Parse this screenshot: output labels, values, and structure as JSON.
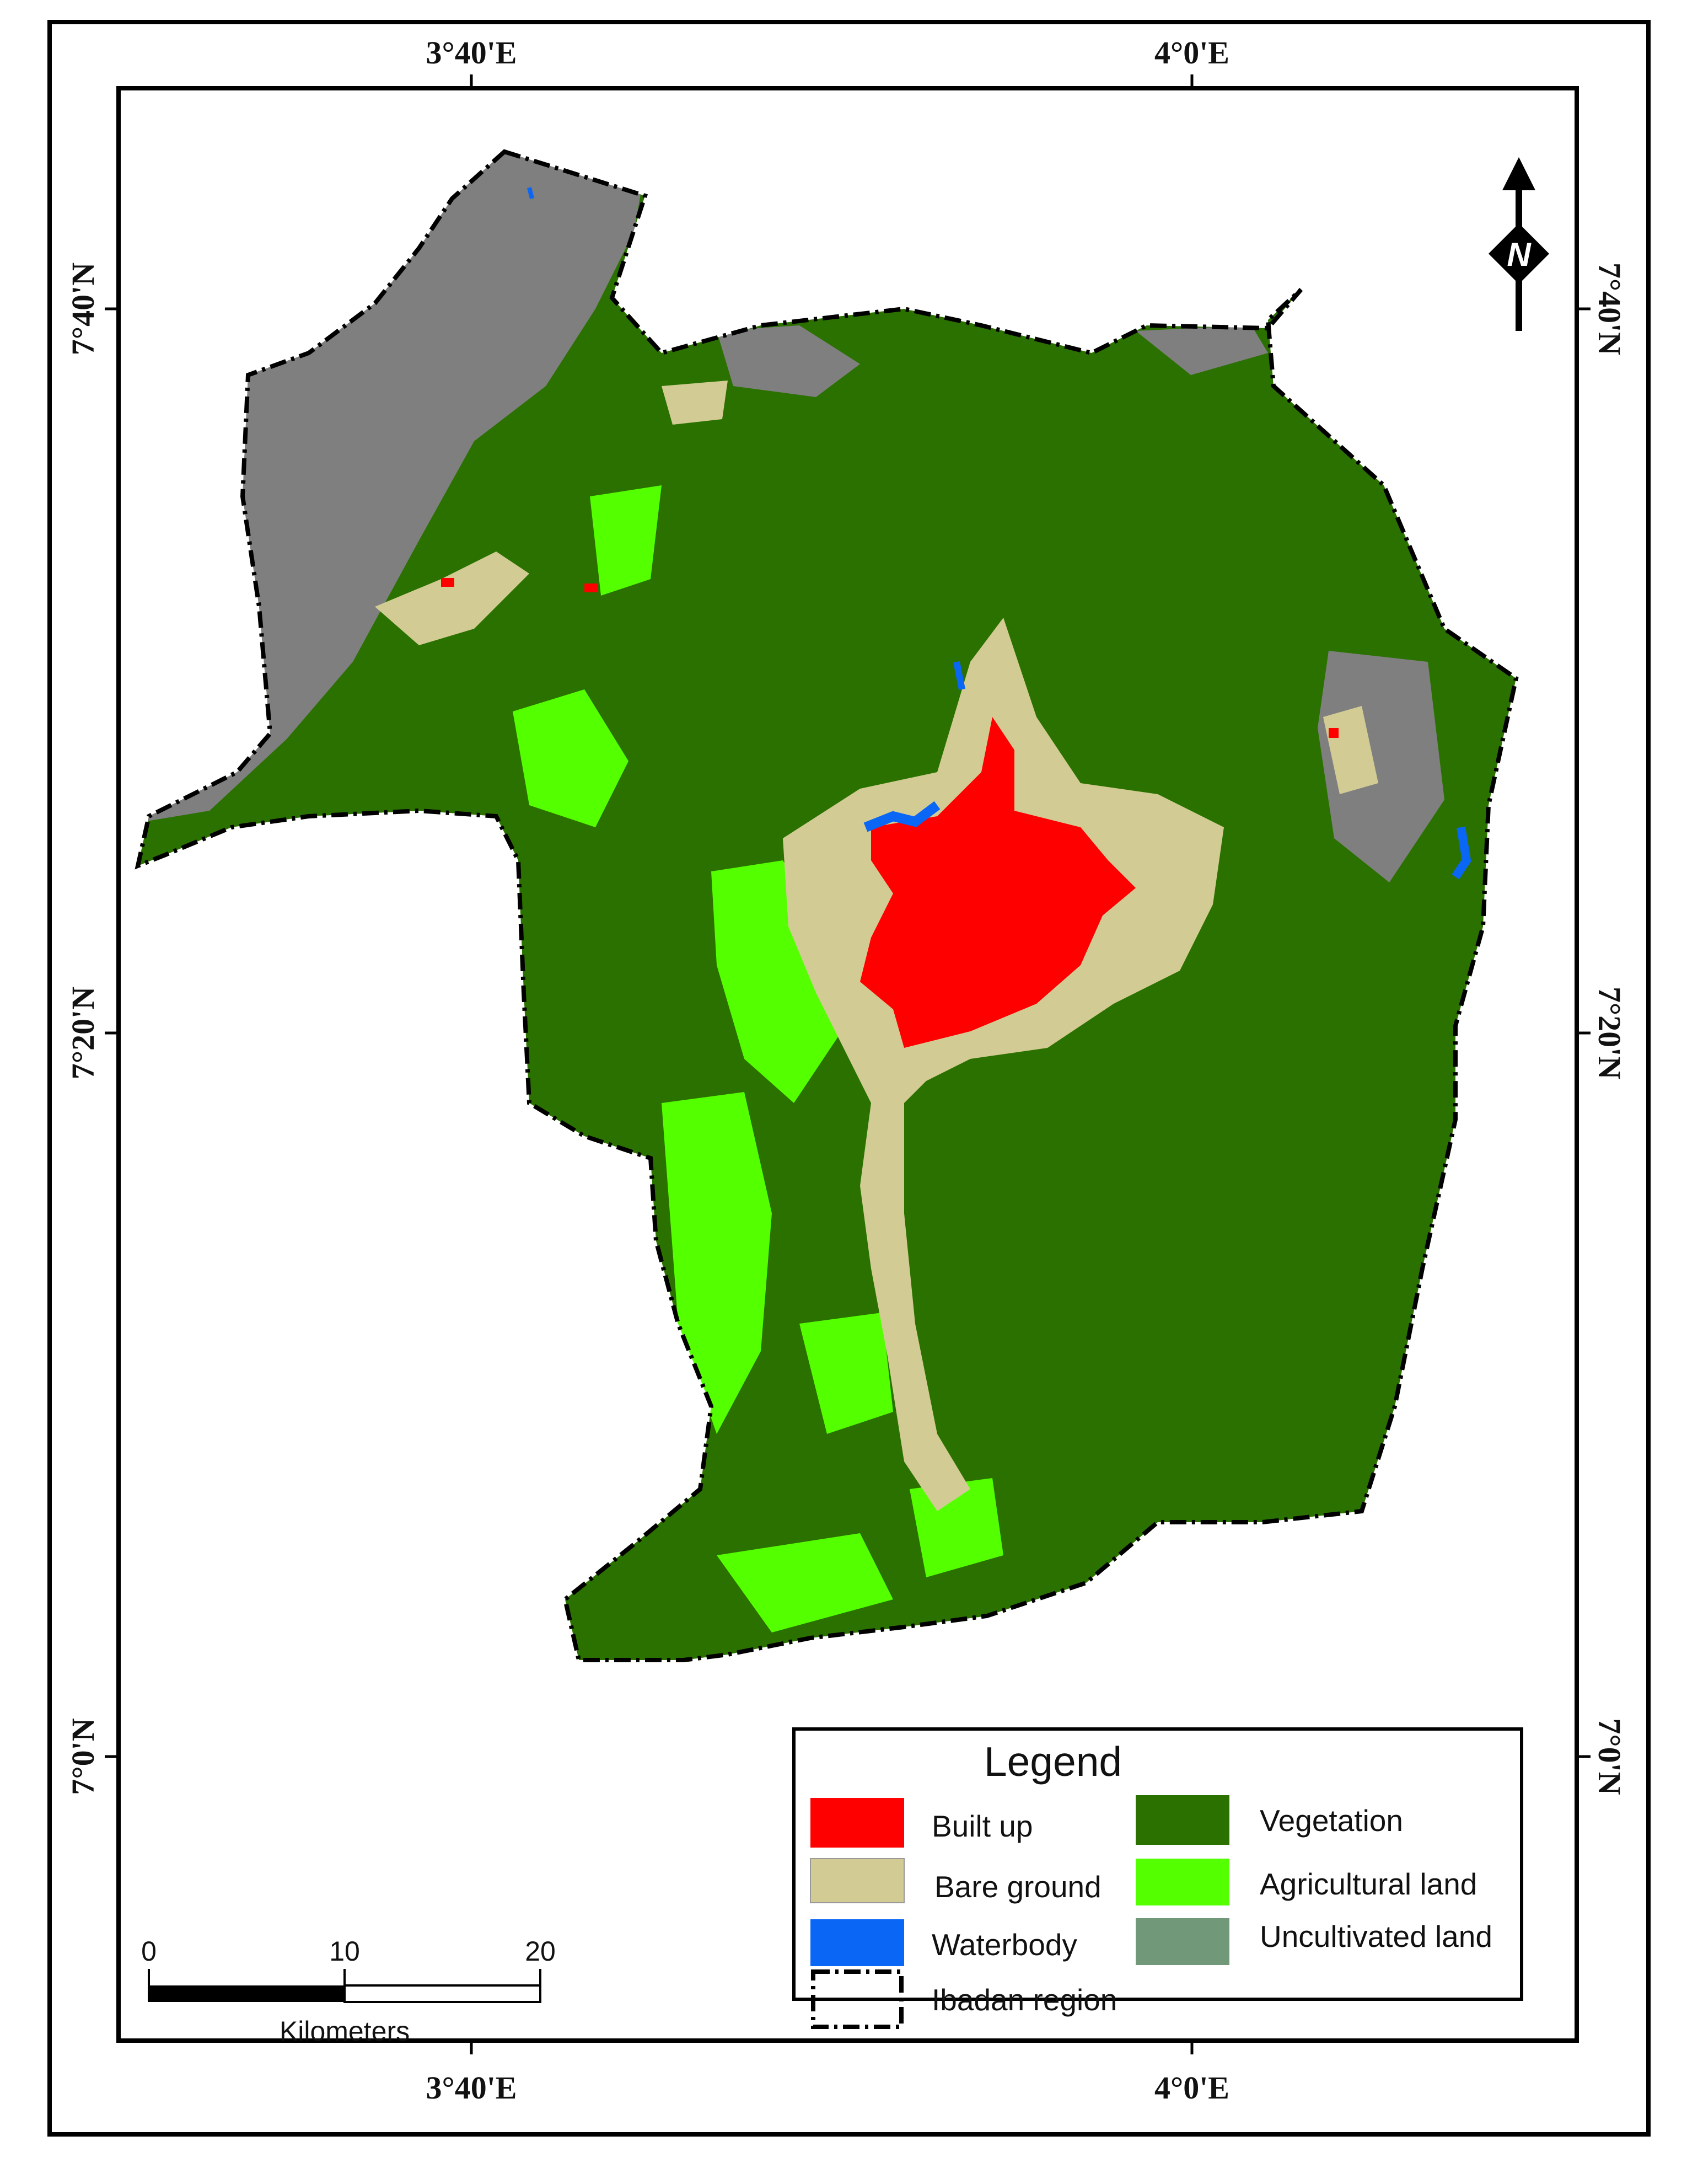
{
  "map": {
    "top_labels": [
      "3°40'E",
      "4°0'E"
    ],
    "bottom_labels": [
      "3°40'E",
      "4°0'E"
    ],
    "left_labels": [
      "7°40'N",
      "7°20'N",
      "7°0'N"
    ],
    "right_labels": [
      "7°40'N",
      "7°20'N",
      "7°0'N"
    ]
  },
  "north_arrow": {
    "label": "N"
  },
  "legend": {
    "title": "Legend",
    "items": [
      {
        "label": "Built up",
        "color": "#ff0000"
      },
      {
        "label": "Bare ground",
        "color": "#d2cc94"
      },
      {
        "label": "Waterbody",
        "color": "#0a66f5"
      },
      {
        "label": "Vegetation",
        "color": "#2a7100"
      },
      {
        "label": "Agricultural land",
        "color": "#54ff00"
      },
      {
        "label": "Uncultivated land",
        "color": "#72987a"
      }
    ],
    "boundary_label": "Ibadan region"
  },
  "scale_bar": {
    "ticks": [
      "0",
      "10",
      "20"
    ],
    "unit": "Kilometers"
  },
  "colors": {
    "vegetation": "#2a7100",
    "agricultural": "#54ff00",
    "builtup": "#ff0000",
    "bare": "#d2cc94",
    "water": "#0a66f5",
    "gray": "#7f7f7f"
  }
}
